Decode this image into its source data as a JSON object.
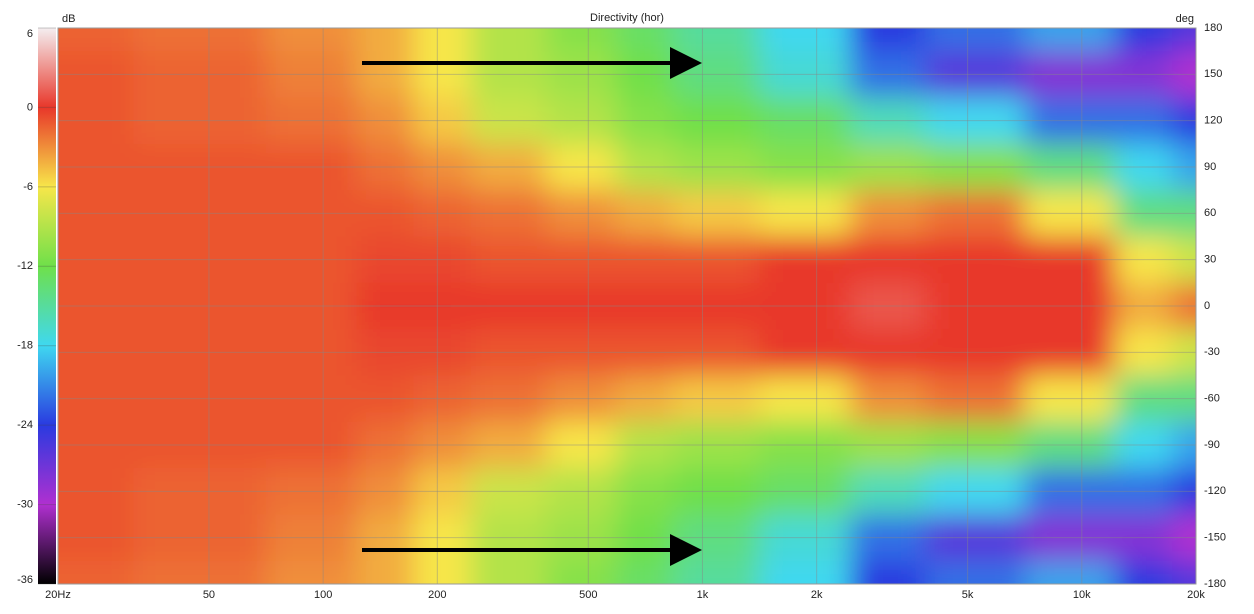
{
  "chart_data": {
    "type": "heatmap",
    "title": "Directivity (hor)",
    "colorbar_label": "dB",
    "y_label": "deg",
    "x": [
      20,
      50,
      100,
      150,
      200,
      300,
      500,
      700,
      1000,
      2000,
      3000,
      5000,
      10000,
      15000,
      20000
    ],
    "y": [
      180,
      150,
      120,
      90,
      60,
      30,
      0,
      -30,
      -60,
      -90,
      -120,
      -150,
      -180
    ],
    "z": [
      [
        -1.5,
        -2,
        -3,
        -4,
        -6,
        -9,
        -11,
        -13,
        -15,
        -18,
        -24,
        -22,
        -20,
        -24,
        -26
      ],
      [
        -1,
        -1.5,
        -2.5,
        -4,
        -6,
        -9,
        -10,
        -12,
        -14,
        -17,
        -22,
        -26,
        -28,
        -28,
        -30
      ],
      [
        -1,
        -1.5,
        -2,
        -3,
        -5,
        -8,
        -9,
        -11,
        -12,
        -13,
        -16,
        -18,
        -22,
        -22,
        -24
      ],
      [
        -1,
        -1,
        -1,
        -2,
        -3,
        -4,
        -6,
        -9,
        -10,
        -11,
        -10,
        -11,
        -14,
        -18,
        -20
      ],
      [
        -1,
        -1,
        -1,
        -1,
        -1.5,
        -2,
        -3,
        -4,
        -5,
        -6,
        -3,
        -2,
        -6,
        -14,
        -14
      ],
      [
        -1,
        -1,
        -1,
        -0.5,
        -0.5,
        -1,
        -1,
        -1,
        -1,
        0,
        0,
        0,
        0,
        -6,
        -8
      ],
      [
        -1,
        -1,
        -1,
        0,
        0,
        0,
        0,
        0,
        0,
        0,
        1,
        0,
        0,
        -4,
        -2
      ],
      [
        -1,
        -1,
        -1,
        -0.5,
        -0.5,
        -1,
        -1,
        -1,
        -1,
        0,
        0,
        0,
        0,
        -6,
        -8
      ],
      [
        -1,
        -1,
        -1,
        -1,
        -1.5,
        -2,
        -3,
        -4,
        -5,
        -6,
        -3,
        -2,
        -6,
        -14,
        -14
      ],
      [
        -1,
        -1,
        -1,
        -2,
        -3,
        -4,
        -6,
        -9,
        -10,
        -11,
        -10,
        -11,
        -14,
        -18,
        -20
      ],
      [
        -1,
        -1.5,
        -2,
        -3,
        -5,
        -8,
        -9,
        -11,
        -12,
        -13,
        -16,
        -18,
        -22,
        -22,
        -24
      ],
      [
        -1,
        -1.5,
        -2.5,
        -4,
        -6,
        -9,
        -10,
        -12,
        -14,
        -17,
        -22,
        -26,
        -28,
        -28,
        -30
      ],
      [
        -1.5,
        -2,
        -3,
        -4,
        -6,
        -9,
        -11,
        -13,
        -15,
        -18,
        -24,
        -22,
        -20,
        -24,
        -26
      ]
    ],
    "xlim": [
      20,
      20000
    ],
    "log_x": true,
    "xticks": [
      {
        "value": 20,
        "label": "20Hz"
      },
      50,
      100,
      200,
      500,
      {
        "value": 1000,
        "label": "1k"
      },
      {
        "value": 2000,
        "label": "2k"
      },
      {
        "value": 5000,
        "label": "5k"
      },
      {
        "value": 10000,
        "label": "10k"
      },
      {
        "value": 20000,
        "label": "20k"
      }
    ],
    "ylim": [
      -180,
      180
    ],
    "yticks": [
      180,
      150,
      120,
      90,
      60,
      30,
      0,
      -30,
      -60,
      -90,
      -120,
      -150,
      -180
    ],
    "zlim": [
      -36,
      6
    ],
    "zticks": [
      6,
      0,
      -6,
      -12,
      -18,
      -24,
      -30,
      -36
    ],
    "colorscale": [
      [
        6,
        "#f4eef0"
      ],
      [
        0,
        "#e8372a"
      ],
      [
        -6,
        "#f7e64a"
      ],
      [
        -12,
        "#6fe04a"
      ],
      [
        -18,
        "#3fd8f0"
      ],
      [
        -24,
        "#2a3ae0"
      ],
      [
        -30,
        "#b030d0"
      ],
      [
        -36,
        "#000000"
      ]
    ],
    "grid": true
  }
}
